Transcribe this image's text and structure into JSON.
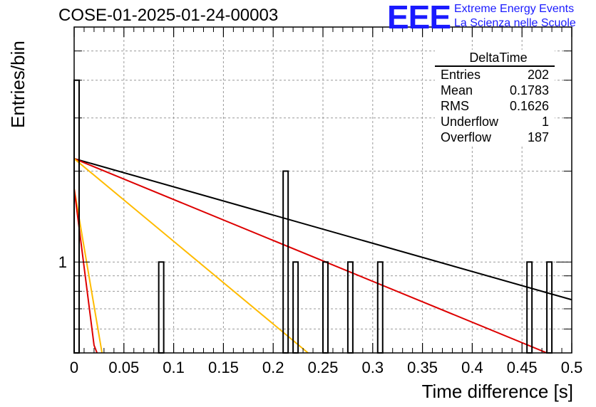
{
  "header": {
    "run_title": "COSE-01-2025-01-24-00003",
    "logo_text": "EEE",
    "brand_line1": "Extreme Energy Events",
    "brand_line2": "La Scienza nelle Scuole",
    "brand_color": "#1a1aff"
  },
  "stats_box": {
    "title": "DeltaTime",
    "rows": [
      {
        "label": "Entries",
        "value": "202"
      },
      {
        "label": "Mean",
        "value": "0.1783"
      },
      {
        "label": "RMS",
        "value": "0.1626"
      },
      {
        "label": "Underflow",
        "value": "1"
      },
      {
        "label": "Overflow",
        "value": "187"
      }
    ]
  },
  "chart_data": {
    "type": "bar",
    "title": "COSE-01-2025-01-24-00003",
    "xlabel": "Time difference [s]",
    "ylabel": "Entries/bin",
    "xlim": [
      0,
      0.5
    ],
    "ylim": [
      0.5,
      6
    ],
    "y_scale": "log",
    "grid": true,
    "x_ticks": [
      "0",
      "0.05",
      "0.1",
      "0.15",
      "0.2",
      "0.25",
      "0.3",
      "0.35",
      "0.4",
      "0.45",
      "0.5"
    ],
    "y_tick_labels": [
      "1"
    ],
    "bin_width": 0.005,
    "bins": [
      {
        "x": 0.0,
        "value": 4
      },
      {
        "x": 0.085,
        "value": 1
      },
      {
        "x": 0.21,
        "value": 2
      },
      {
        "x": 0.22,
        "value": 1
      },
      {
        "x": 0.25,
        "value": 1
      },
      {
        "x": 0.275,
        "value": 1
      },
      {
        "x": 0.305,
        "value": 1
      },
      {
        "x": 0.455,
        "value": 1
      },
      {
        "x": 0.475,
        "value": 1
      }
    ],
    "curves": [
      {
        "color": "#000000",
        "points": [
          [
            0.0,
            2.2
          ],
          [
            0.5,
            0.75
          ]
        ]
      },
      {
        "color": "#dd0000",
        "points": [
          [
            0.0,
            2.2
          ],
          [
            0.475,
            0.5
          ]
        ]
      },
      {
        "color": "#ffbb00",
        "points": [
          [
            0.0,
            2.2
          ],
          [
            0.235,
            0.5
          ]
        ]
      },
      {
        "color": "#ffbb00",
        "points": [
          [
            0.0,
            1.75
          ],
          [
            0.028,
            0.5
          ]
        ]
      },
      {
        "color": "#dd0000",
        "points": [
          [
            0.0,
            1.75
          ],
          [
            0.02,
            0.53
          ],
          [
            0.023,
            0.5
          ]
        ]
      }
    ]
  }
}
